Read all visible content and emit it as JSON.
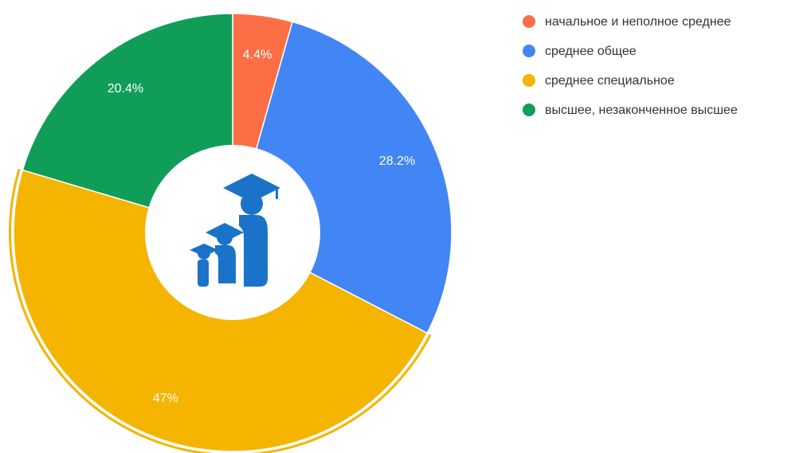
{
  "chart_data": {
    "type": "pie",
    "categories": [
      "начальное и неполное среднее",
      "среднее общее",
      "среднее специальное",
      "высшее, незаконченное высшее"
    ],
    "values": [
      4.4,
      28.2,
      47,
      20.4
    ],
    "value_labels": [
      "4.4%",
      "28.2%",
      "47%",
      "20.4%"
    ],
    "colors": [
      "#fc6e45",
      "#4285f4",
      "#f4b400",
      "#0f9d58"
    ],
    "legend": "right"
  }
}
